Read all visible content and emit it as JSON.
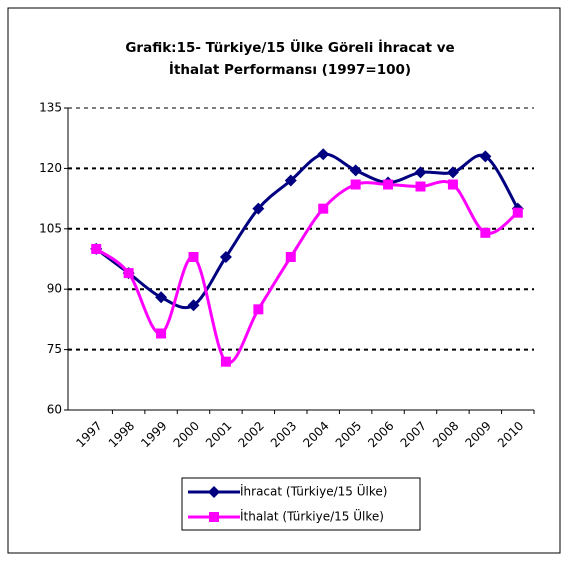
{
  "chart_data": {
    "type": "line",
    "title": [
      "Grafik:15- Türkiye/15 Ülke Göreli İhracat ve",
      "İthalat Performansı (1997=100)"
    ],
    "categories": [
      "1997",
      "1998",
      "1999",
      "2000",
      "2001",
      "2002",
      "2003",
      "2004",
      "2005",
      "2006",
      "2007",
      "2008",
      "2009",
      "2010"
    ],
    "series": [
      {
        "name": "İhracat (Türkiye/15 Ülke)",
        "color": "#000080",
        "marker": "diamond",
        "values": [
          100,
          94,
          88,
          86,
          98,
          110,
          117,
          123.5,
          119.5,
          116.5,
          119,
          119,
          123,
          110
        ]
      },
      {
        "name": "İthalat (Türkiye/15 Ülke)",
        "color": "#ff00ff",
        "marker": "square",
        "values": [
          100,
          94,
          79,
          98,
          72,
          85,
          98,
          110,
          116,
          116,
          115.5,
          116,
          104,
          109
        ]
      }
    ],
    "ylim": [
      60,
      135
    ],
    "yticks": [
      60,
      75,
      90,
      105,
      120,
      135
    ],
    "grid": true,
    "legend": "bottom"
  }
}
